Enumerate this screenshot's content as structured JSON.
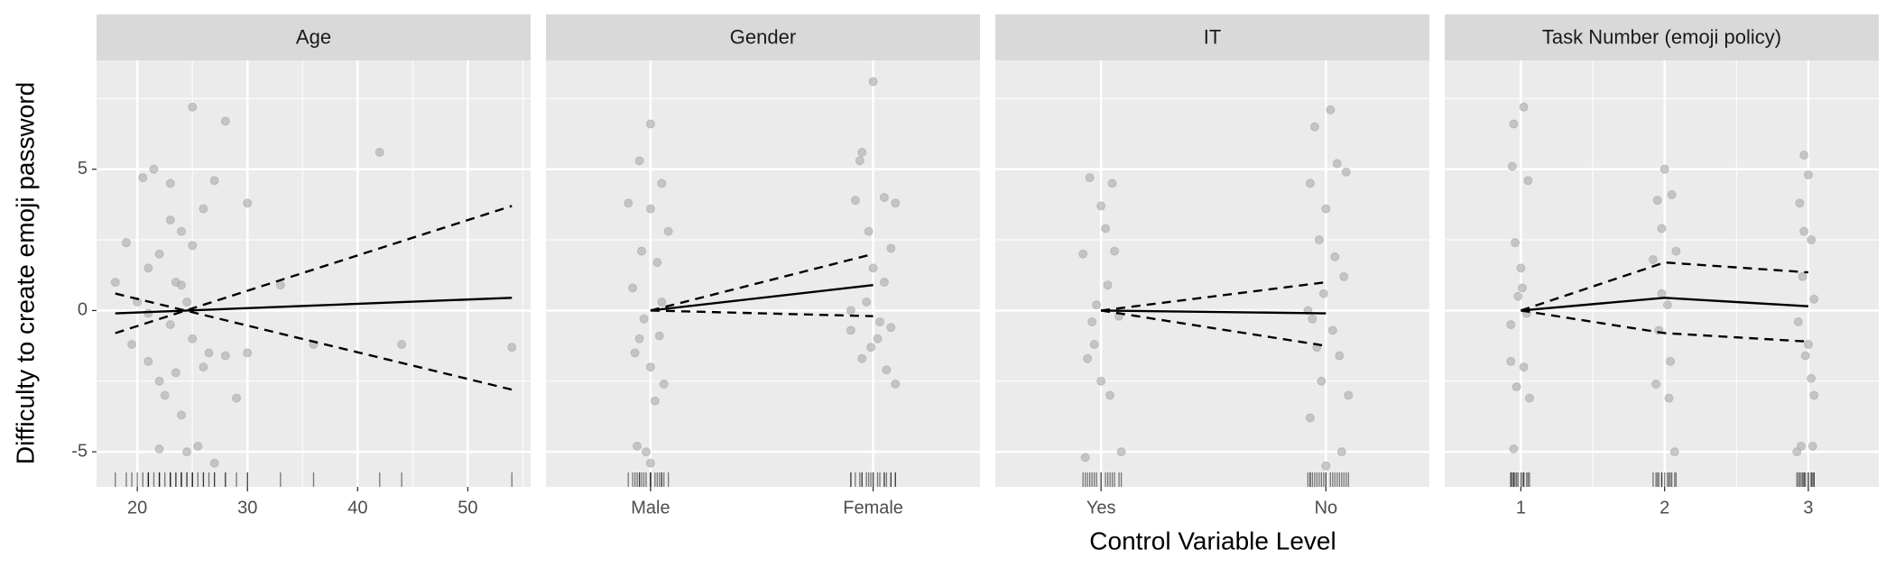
{
  "chart_data": {
    "type": "scatter",
    "x_label": "Control Variable Level",
    "y_label": "Difficulty to create emoji password",
    "ylim": [
      -6.24,
      8.85
    ],
    "yticks": [
      -5,
      0,
      5
    ],
    "y_minor": [
      -2.5,
      2.5,
      7.5
    ],
    "grid": true,
    "point_color": "#b3b3b3",
    "line_color": "#000000",
    "panels": [
      {
        "title": "Age",
        "xlim": [
          16.3,
          55.7
        ],
        "xticks": [
          20,
          30,
          40,
          50
        ],
        "x_minor": [
          25,
          35,
          45,
          55
        ],
        "points": {
          "x": [
            18,
            19,
            19.5,
            20,
            20.5,
            21,
            21,
            21.5,
            22,
            22,
            22.5,
            23,
            23,
            23,
            23.5,
            23.5,
            24,
            24,
            24.5,
            24.5,
            25,
            25,
            25,
            25.5,
            26,
            26,
            26.5,
            27,
            27,
            28,
            28,
            29,
            30,
            30,
            33,
            36,
            42,
            44,
            54,
            22,
            21,
            24
          ],
          "y": [
            1.0,
            2.4,
            -1.2,
            0.3,
            4.7,
            -1.8,
            1.5,
            5.0,
            -2.5,
            2.0,
            -3.0,
            4.5,
            3.2,
            -0.5,
            1.0,
            -2.2,
            2.8,
            -3.7,
            0.3,
            -5.0,
            7.2,
            -1.0,
            2.3,
            -4.8,
            3.6,
            -2.0,
            -1.5,
            4.6,
            -5.4,
            6.7,
            -1.6,
            -3.1,
            3.8,
            -1.5,
            0.9,
            -1.2,
            5.6,
            -1.2,
            -1.3,
            -4.9,
            -0.1,
            0.9
          ]
        },
        "series": [
          {
            "style": "solid",
            "x": [
              18,
              54
            ],
            "values": [
              -0.1,
              0.45
            ]
          },
          {
            "style": "dashed",
            "x": [
              18,
              54
            ],
            "values": [
              -0.8,
              3.7
            ]
          },
          {
            "style": "dashed",
            "x": [
              18,
              54
            ],
            "values": [
              0.6,
              -2.8
            ]
          }
        ]
      },
      {
        "title": "Gender",
        "xlim": [
          0.53,
          2.48
        ],
        "xticks": [
          {
            "value": 1,
            "label": "Male"
          },
          {
            "value": 2,
            "label": "Female"
          }
        ],
        "points": {
          "x": [
            0.95,
            1.0,
            0.9,
            1.05,
            0.95,
            1.0,
            1.02,
            0.98,
            1.0,
            1.08,
            1.05,
            0.92,
            0.97,
            1.03,
            0.94,
            1.06,
            0.96,
            1.0,
            1.04,
            0.93,
            2.0,
            1.95,
            2.05,
            1.92,
            2.08,
            1.98,
            2.0,
            1.9,
            2.02,
            1.95,
            2.06,
            2.1,
            1.97,
            2.03,
            1.94,
            2.1,
            1.9,
            2.05,
            1.99,
            2.08
          ],
          "y": [
            5.3,
            6.6,
            3.8,
            4.5,
            -1.0,
            -2.0,
            -3.2,
            -5.0,
            -5.4,
            2.8,
            0.3,
            0.8,
            -0.3,
            1.7,
            -4.8,
            -2.6,
            2.1,
            3.6,
            -0.9,
            -1.5,
            8.1,
            5.6,
            4.0,
            3.9,
            2.2,
            2.8,
            1.5,
            -0.7,
            -1.0,
            -1.7,
            -2.1,
            -2.6,
            0.3,
            -0.4,
            5.3,
            3.8,
            0.0,
            1.0,
            -1.3,
            -0.6
          ]
        },
        "series": [
          {
            "style": "solid",
            "x": [
              1,
              2
            ],
            "values": [
              0,
              0.9
            ]
          },
          {
            "style": "dashed",
            "x": [
              1,
              2
            ],
            "values": [
              0,
              2.0
            ]
          },
          {
            "style": "dashed",
            "x": [
              1,
              2
            ],
            "values": [
              0,
              -0.2
            ]
          }
        ]
      },
      {
        "title": "IT",
        "xlim": [
          0.53,
          2.46
        ],
        "xticks": [
          {
            "value": 1,
            "label": "Yes"
          },
          {
            "value": 2,
            "label": "No"
          }
        ],
        "points": {
          "x": [
            0.95,
            1.0,
            1.05,
            0.92,
            1.02,
            0.98,
            1.08,
            0.94,
            1.0,
            1.04,
            0.93,
            1.09,
            0.97,
            1.06,
            0.96,
            1.03,
            1.95,
            2.02,
            1.93,
            2.05,
            2.0,
            1.97,
            2.08,
            1.92,
            2.03,
            1.96,
            2.06,
            1.98,
            2.1,
            1.93,
            2.0,
            2.07,
            2.04,
            1.94,
            2.09,
            1.99
          ],
          "y": [
            4.7,
            3.7,
            4.5,
            2.0,
            2.9,
            0.2,
            -0.2,
            -1.7,
            -2.5,
            -3.0,
            -5.2,
            -5.0,
            -1.2,
            2.1,
            -0.4,
            0.9,
            6.5,
            7.1,
            4.5,
            5.2,
            3.6,
            2.5,
            1.2,
            0.0,
            -0.7,
            -1.3,
            -1.6,
            -2.5,
            -3.0,
            -3.8,
            -5.5,
            -5.0,
            1.9,
            -0.3,
            4.9,
            0.6
          ]
        },
        "series": [
          {
            "style": "solid",
            "x": [
              1,
              2
            ],
            "values": [
              0,
              -0.1
            ]
          },
          {
            "style": "dashed",
            "x": [
              1,
              2
            ],
            "values": [
              0,
              1.0
            ]
          },
          {
            "style": "dashed",
            "x": [
              1,
              2
            ],
            "values": [
              0,
              -1.25
            ]
          }
        ]
      },
      {
        "title": "Task Number (emoji policy)",
        "xlim": [
          0.47,
          3.49
        ],
        "xticks": [
          1,
          2,
          3
        ],
        "x_minor": [
          1.5,
          2.5
        ],
        "points": {
          "x": [
            0.95,
            1.02,
            0.94,
            1.05,
            0.96,
            1.0,
            0.98,
            1.04,
            0.93,
            1.02,
            0.97,
            1.06,
            0.95,
            1.01,
            0.93,
            2.0,
            1.95,
            2.05,
            1.98,
            2.08,
            1.92,
            2.02,
            1.96,
            2.04,
            1.94,
            2.03,
            2.07,
            1.98,
            2.97,
            3.0,
            2.94,
            3.02,
            2.96,
            3.04,
            2.93,
            3.0,
            2.98,
            3.02,
            3.04,
            2.95,
            2.92,
            3.03,
            2.97
          ],
          "y": [
            6.6,
            7.2,
            5.1,
            4.6,
            2.4,
            1.5,
            0.5,
            -0.1,
            -1.8,
            -2.0,
            -2.7,
            -3.1,
            -4.9,
            0.8,
            -0.5,
            5.0,
            3.9,
            4.1,
            2.9,
            2.1,
            1.8,
            0.2,
            -0.7,
            -1.8,
            -2.6,
            -3.1,
            -5.0,
            0.6,
            5.5,
            4.8,
            3.8,
            2.5,
            1.2,
            0.4,
            -0.4,
            -1.2,
            -1.6,
            -2.4,
            -3.0,
            -4.8,
            -5.0,
            -4.8,
            2.8
          ]
        },
        "series": [
          {
            "style": "solid",
            "x": [
              1,
              2,
              3
            ],
            "values": [
              0,
              0.45,
              0.15
            ]
          },
          {
            "style": "dashed",
            "x": [
              1,
              2,
              3
            ],
            "values": [
              0,
              1.7,
              1.35
            ]
          },
          {
            "style": "dashed",
            "x": [
              1,
              2,
              3
            ],
            "values": [
              0,
              -0.8,
              -1.1
            ]
          }
        ]
      }
    ]
  }
}
